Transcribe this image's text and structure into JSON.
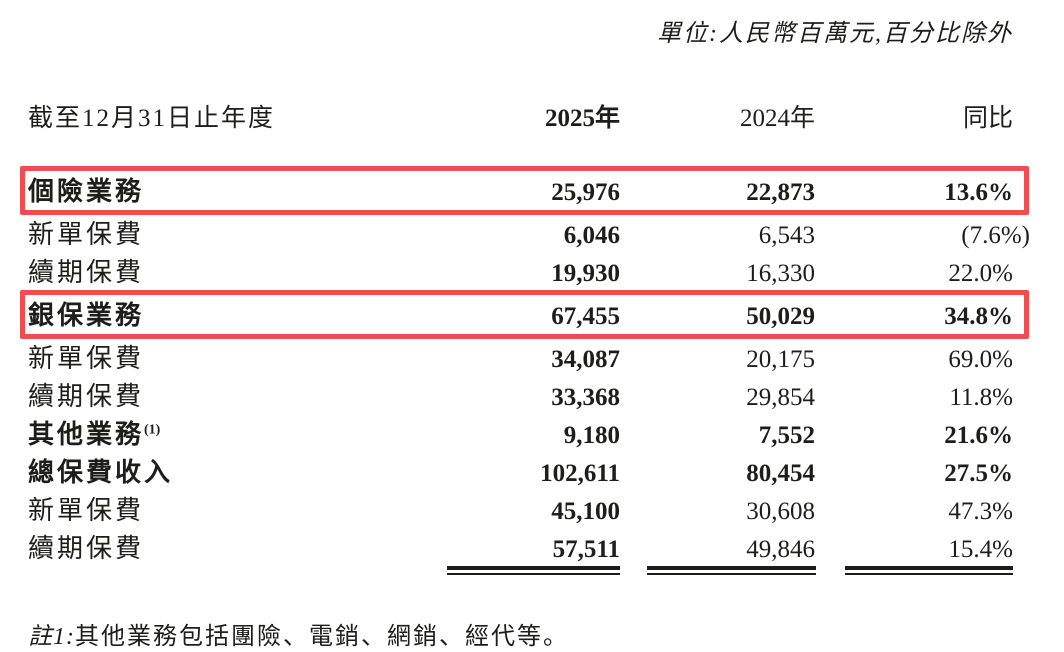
{
  "unit_note": "單位:人民幣百萬元,百分比除外",
  "table": {
    "header": {
      "period_label": "截至12月31日止年度",
      "col_2025": "2025年",
      "col_2024": "2024年",
      "col_yoy": "同比"
    },
    "rows": [
      {
        "label": "個險業務",
        "sup": "",
        "y2025": "25,976",
        "y2024": "22,873",
        "yoy": "13.6%",
        "bold": true,
        "boxed": true
      },
      {
        "label": "新單保費",
        "sup": "",
        "y2025": "6,046",
        "y2024": "6,543",
        "yoy": "(7.6%)",
        "bold": false,
        "boxed": false
      },
      {
        "label": "續期保費",
        "sup": "",
        "y2025": "19,930",
        "y2024": "16,330",
        "yoy": "22.0%",
        "bold": false,
        "boxed": false
      },
      {
        "label": "銀保業務",
        "sup": "",
        "y2025": "67,455",
        "y2024": "50,029",
        "yoy": "34.8%",
        "bold": true,
        "boxed": true
      },
      {
        "label": "新單保費",
        "sup": "",
        "y2025": "34,087",
        "y2024": "20,175",
        "yoy": "69.0%",
        "bold": false,
        "boxed": false
      },
      {
        "label": "續期保費",
        "sup": "",
        "y2025": "33,368",
        "y2024": "29,854",
        "yoy": "11.8%",
        "bold": false,
        "boxed": false
      },
      {
        "label": "其他業務",
        "sup": "(1)",
        "y2025": "9,180",
        "y2024": "7,552",
        "yoy": "21.6%",
        "bold": true,
        "boxed": false
      },
      {
        "label": "總保費收入",
        "sup": "",
        "y2025": "102,611",
        "y2024": "80,454",
        "yoy": "27.5%",
        "bold": true,
        "boxed": false
      },
      {
        "label": "新單保費",
        "sup": "",
        "y2025": "45,100",
        "y2024": "30,608",
        "yoy": "47.3%",
        "bold": false,
        "boxed": false
      },
      {
        "label": "續期保費",
        "sup": "",
        "y2025": "57,511",
        "y2024": "49,846",
        "yoy": "15.4%",
        "bold": false,
        "boxed": false
      }
    ]
  },
  "footnote": {
    "prefix": "註1:",
    "text": "其他業務包括團險、電銷、網銷、經代等。"
  },
  "colors": {
    "highlight_red": "#ef4d4f",
    "text": "#1d1d1b"
  }
}
